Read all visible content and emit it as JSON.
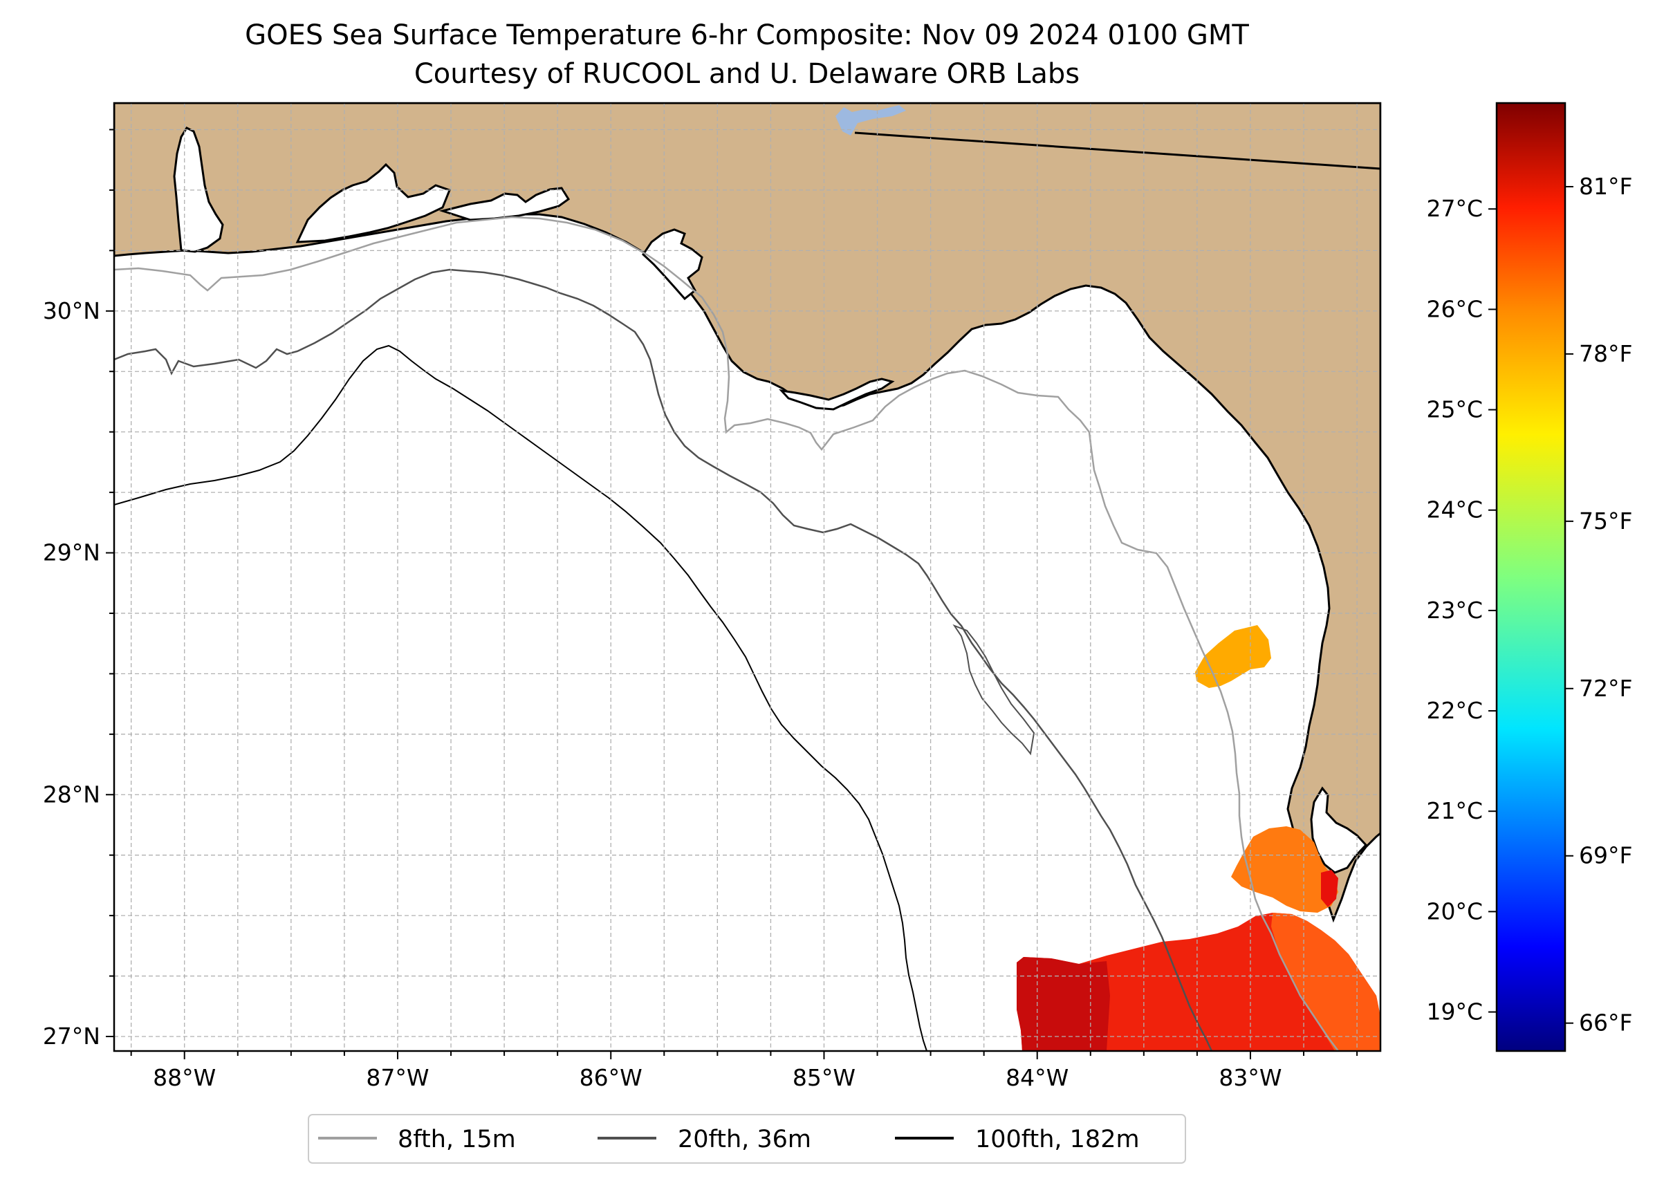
{
  "title": {
    "line1": "GOES Sea Surface Temperature 6-hr Composite: Nov 09 2024 0100 GMT",
    "line2": "Courtesy of RUCOOL and U. Delaware ORB Labs"
  },
  "map": {
    "lon_range": [
      -88.33,
      -82.39
    ],
    "lat_range": [
      26.94,
      30.86
    ],
    "x_ticks": [
      {
        "lon": -88,
        "label": "88°W"
      },
      {
        "lon": -87,
        "label": "87°W"
      },
      {
        "lon": -86,
        "label": "86°W"
      },
      {
        "lon": -85,
        "label": "85°W"
      },
      {
        "lon": -84,
        "label": "84°W"
      },
      {
        "lon": -83,
        "label": "83°W"
      }
    ],
    "y_ticks": [
      {
        "lat": 27,
        "label": "27°N"
      },
      {
        "lat": 28,
        "label": "28°N"
      },
      {
        "lat": 29,
        "label": "29°N"
      },
      {
        "lat": 30,
        "label": "30°N"
      }
    ],
    "gridlines": "dashed grey every 0.25°",
    "land_color": "#D2B48C",
    "water_color": "#FFFFFF",
    "lake_color": "#9DB9E0",
    "sst_patches": [
      {
        "region": "big bend",
        "approx_temp_F": 77,
        "color": "#FFAA00"
      },
      {
        "region": "tampa bay",
        "approx_temp_F": 79,
        "color": "#FF7A10"
      },
      {
        "region": "southern shelf",
        "approx_temp_F": 81,
        "color": "#E8100A"
      }
    ]
  },
  "colorbar": {
    "celsius_ticks": [
      "19°C",
      "20°C",
      "21°C",
      "22°C",
      "23°C",
      "24°C",
      "25°C",
      "26°C",
      "27°C"
    ],
    "fahrenheit_ticks": [
      "66°F",
      "69°F",
      "72°F",
      "75°F",
      "78°F",
      "81°F"
    ],
    "celsius_values": [
      19,
      20,
      21,
      22,
      23,
      24,
      25,
      26,
      27
    ],
    "fahrenheit_values": [
      66,
      69,
      72,
      75,
      78,
      81
    ],
    "f_range": [
      65.5,
      82.5
    ],
    "colormap": "jet"
  },
  "legend": {
    "placement": "bottom-center",
    "items": [
      {
        "label": "8fth, 15m",
        "color": "#A0A0A0"
      },
      {
        "label": "20fth, 36m",
        "color": "#505050"
      },
      {
        "label": "100fth, 182m",
        "color": "#000000"
      }
    ]
  }
}
